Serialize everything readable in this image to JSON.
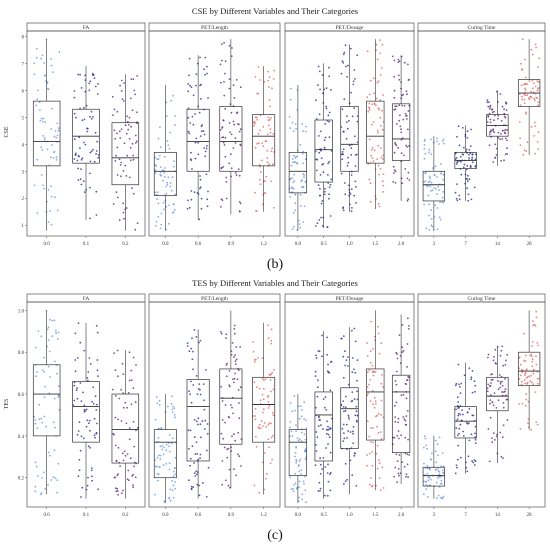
{
  "colors": {
    "blue": "#6e97e0",
    "navy": "#2c2f8c",
    "purple": "#5b2a78",
    "red": "#e06a66",
    "box": "#333333",
    "frame": "#555555"
  },
  "chart_data": [
    {
      "type": "box",
      "title": "CSE by Different Variables and Their Categories",
      "ylabel": "CSE",
      "caption": "(b)",
      "ylim": [
        0.6,
        8.2
      ],
      "yticks": [
        1,
        2,
        3,
        4,
        5,
        6,
        7,
        8
      ],
      "panels": [
        {
          "title": "FA",
          "categories": [
            "0.0",
            "0.1",
            "0.2"
          ],
          "colors": [
            "blue",
            "navy",
            "purple"
          ],
          "boxes": [
            {
              "whislo": 0.8,
              "q1": 3.2,
              "med": 4.1,
              "q3": 5.6,
              "whishi": 7.9
            },
            {
              "whislo": 1.2,
              "q1": 3.3,
              "med": 4.3,
              "q3": 5.3,
              "whishi": 6.9
            },
            {
              "whislo": 0.8,
              "q1": 2.5,
              "med": 3.5,
              "q3": 4.8,
              "whishi": 6.6
            }
          ]
        },
        {
          "title": "PET/Length",
          "categories": [
            "0.0",
            "0.6",
            "0.9",
            "1.2"
          ],
          "colors": [
            "blue",
            "navy",
            "purple",
            "red"
          ],
          "boxes": [
            {
              "whislo": 0.8,
              "q1": 2.1,
              "med": 3.0,
              "q3": 3.7,
              "whishi": 6.2
            },
            {
              "whislo": 1.2,
              "q1": 3.0,
              "med": 4.1,
              "q3": 5.3,
              "whishi": 7.3
            },
            {
              "whislo": 1.4,
              "q1": 3.0,
              "med": 4.1,
              "q3": 5.4,
              "whishi": 7.9
            },
            {
              "whislo": 1.5,
              "q1": 3.2,
              "med": 4.3,
              "q3": 5.1,
              "whishi": 6.9
            }
          ]
        },
        {
          "title": "PET/Dosage",
          "categories": [
            "0.0",
            "0.5",
            "1.0",
            "1.5",
            "2.0"
          ],
          "colors": [
            "blue",
            "navy",
            "navy",
            "red",
            "purple"
          ],
          "boxes": [
            {
              "whislo": 0.8,
              "q1": 2.2,
              "med": 3.0,
              "q3": 3.7,
              "whishi": 6.2
            },
            {
              "whislo": 0.9,
              "q1": 2.6,
              "med": 3.8,
              "q3": 4.9,
              "whishi": 7.0
            },
            {
              "whislo": 1.5,
              "q1": 3.0,
              "med": 4.0,
              "q3": 5.4,
              "whishi": 7.7
            },
            {
              "whislo": 1.6,
              "q1": 3.3,
              "med": 4.3,
              "q3": 5.6,
              "whishi": 7.9
            },
            {
              "whislo": 1.9,
              "q1": 3.4,
              "med": 4.2,
              "q3": 5.5,
              "whishi": 7.3
            }
          ]
        },
        {
          "title": "Curing Time",
          "categories": [
            "3",
            "7",
            "14",
            "28"
          ],
          "colors": [
            "blue",
            "navy",
            "purple",
            "red"
          ],
          "boxes": [
            {
              "whislo": 0.8,
              "q1": 1.9,
              "med": 2.5,
              "q3": 3.0,
              "whishi": 4.3
            },
            {
              "whislo": 1.9,
              "q1": 3.1,
              "med": 3.4,
              "q3": 3.7,
              "whishi": 4.7
            },
            {
              "whislo": 3.2,
              "q1": 4.3,
              "med": 4.7,
              "q3": 5.1,
              "whishi": 6.0
            },
            {
              "whislo": 3.6,
              "q1": 5.4,
              "med": 5.9,
              "q3": 6.4,
              "whishi": 7.9
            }
          ]
        }
      ]
    },
    {
      "type": "box",
      "title": "TES by Different Variables and Their Categories",
      "ylabel": "TES",
      "caption": "(c)",
      "ylim": [
        0.06,
        1.04
      ],
      "yticks": [
        0.2,
        0.4,
        0.6,
        0.8,
        1.0
      ],
      "panels": [
        {
          "title": "FA",
          "categories": [
            "0.0",
            "0.1",
            "0.2"
          ],
          "colors": [
            "blue",
            "navy",
            "purple"
          ],
          "boxes": [
            {
              "whislo": 0.12,
              "q1": 0.4,
              "med": 0.6,
              "q3": 0.74,
              "whishi": 1.0
            },
            {
              "whislo": 0.1,
              "q1": 0.37,
              "med": 0.54,
              "q3": 0.66,
              "whishi": 0.94
            },
            {
              "whislo": 0.1,
              "q1": 0.27,
              "med": 0.43,
              "q3": 0.6,
              "whishi": 0.81
            }
          ]
        },
        {
          "title": "PET/Length",
          "categories": [
            "0.0",
            "0.6",
            "0.9",
            "1.2"
          ],
          "colors": [
            "blue",
            "navy",
            "purple",
            "red"
          ],
          "boxes": [
            {
              "whislo": 0.08,
              "q1": 0.2,
              "med": 0.37,
              "q3": 0.43,
              "whishi": 0.6
            },
            {
              "whislo": 0.1,
              "q1": 0.28,
              "med": 0.54,
              "q3": 0.67,
              "whishi": 0.91
            },
            {
              "whislo": 0.15,
              "q1": 0.36,
              "med": 0.58,
              "q3": 0.72,
              "whishi": 1.0
            },
            {
              "whislo": 0.12,
              "q1": 0.37,
              "med": 0.55,
              "q3": 0.68,
              "whishi": 0.94
            }
          ]
        },
        {
          "title": "PET/Dosage",
          "categories": [
            "0.0",
            "0.5",
            "1.0",
            "1.5",
            "2.0"
          ],
          "colors": [
            "blue",
            "navy",
            "navy",
            "red",
            "purple"
          ],
          "boxes": [
            {
              "whislo": 0.08,
              "q1": 0.21,
              "med": 0.37,
              "q3": 0.43,
              "whishi": 0.6
            },
            {
              "whislo": 0.1,
              "q1": 0.28,
              "med": 0.5,
              "q3": 0.61,
              "whishi": 0.9
            },
            {
              "whislo": 0.12,
              "q1": 0.34,
              "med": 0.53,
              "q3": 0.63,
              "whishi": 0.92
            },
            {
              "whislo": 0.14,
              "q1": 0.38,
              "med": 0.61,
              "q3": 0.72,
              "whishi": 1.0
            },
            {
              "whislo": 0.17,
              "q1": 0.32,
              "med": 0.61,
              "q3": 0.69,
              "whishi": 0.98
            }
          ]
        },
        {
          "title": "Curing Time",
          "categories": [
            "3",
            "7",
            "14",
            "28"
          ],
          "colors": [
            "blue",
            "navy",
            "purple",
            "red"
          ],
          "boxes": [
            {
              "whislo": 0.1,
              "q1": 0.16,
              "med": 0.21,
              "q3": 0.25,
              "whishi": 0.4
            },
            {
              "whislo": 0.22,
              "q1": 0.39,
              "med": 0.47,
              "q3": 0.54,
              "whishi": 0.75
            },
            {
              "whislo": 0.27,
              "q1": 0.52,
              "med": 0.59,
              "q3": 0.68,
              "whishi": 0.83
            },
            {
              "whislo": 0.43,
              "q1": 0.64,
              "med": 0.71,
              "q3": 0.8,
              "whishi": 1.0
            }
          ]
        }
      ]
    }
  ]
}
